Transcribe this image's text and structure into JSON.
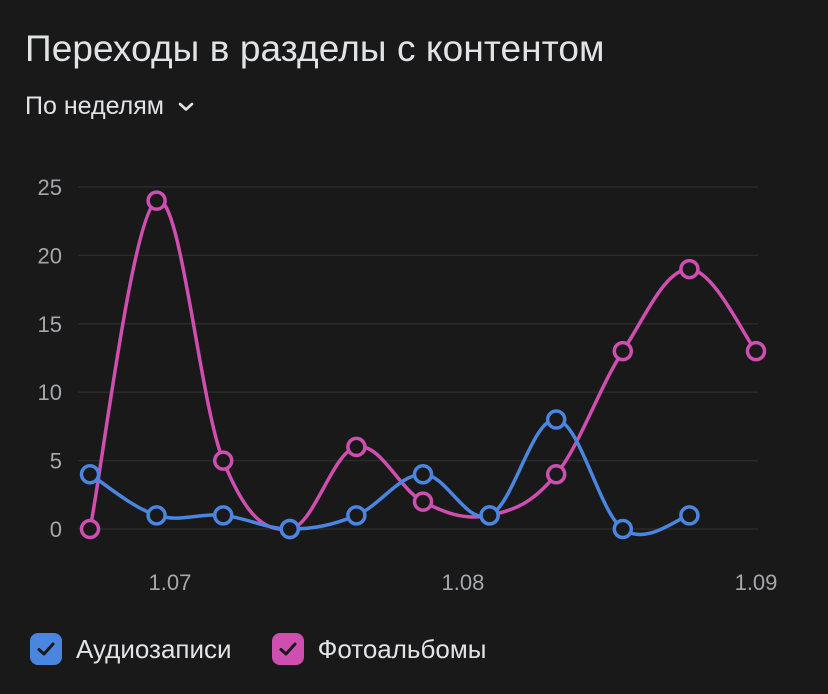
{
  "header": {
    "title": "Переходы в разделы с контентом",
    "period_label": "По неделям"
  },
  "legend": [
    {
      "name": "Аудиозаписи",
      "color": "#4a86e0",
      "icon": "checkbox-checked-icon"
    },
    {
      "name": "Фотоальбомы",
      "color": "#cf4fb0",
      "icon": "checkbox-checked-icon"
    }
  ],
  "colors": {
    "background": "#19191a",
    "grid": "#2a2a2b",
    "tick_text": "#a5a7aa"
  },
  "chart_data": {
    "type": "line",
    "title": "Переходы в разделы с контентом",
    "xlabel": "",
    "ylabel": "",
    "ylim": [
      0,
      25
    ],
    "yticks": [
      0,
      5,
      10,
      15,
      20,
      25
    ],
    "xlim": [
      0,
      10.1
    ],
    "xticks": [
      {
        "label": "1.07",
        "pos": 1.2
      },
      {
        "label": "1.08",
        "pos": 5.6
      },
      {
        "label": "1.09",
        "pos": 10.0
      }
    ],
    "grid": true,
    "legend_position": "bottom-left",
    "series": [
      {
        "name": "Аудиозаписи",
        "color": "#4a86e0",
        "x": [
          0,
          1,
          2,
          3,
          4,
          5,
          6,
          7,
          8,
          9
        ],
        "values": [
          4,
          1,
          1,
          0,
          1,
          4,
          1,
          8,
          0,
          1
        ]
      },
      {
        "name": "Фотоальбомы",
        "color": "#cf4fb0",
        "x": [
          0,
          1,
          2,
          3,
          4,
          5,
          6,
          7,
          8,
          9,
          10
        ],
        "values": [
          0,
          24,
          5,
          0,
          6,
          2,
          1,
          4,
          13,
          19,
          13
        ]
      }
    ]
  }
}
